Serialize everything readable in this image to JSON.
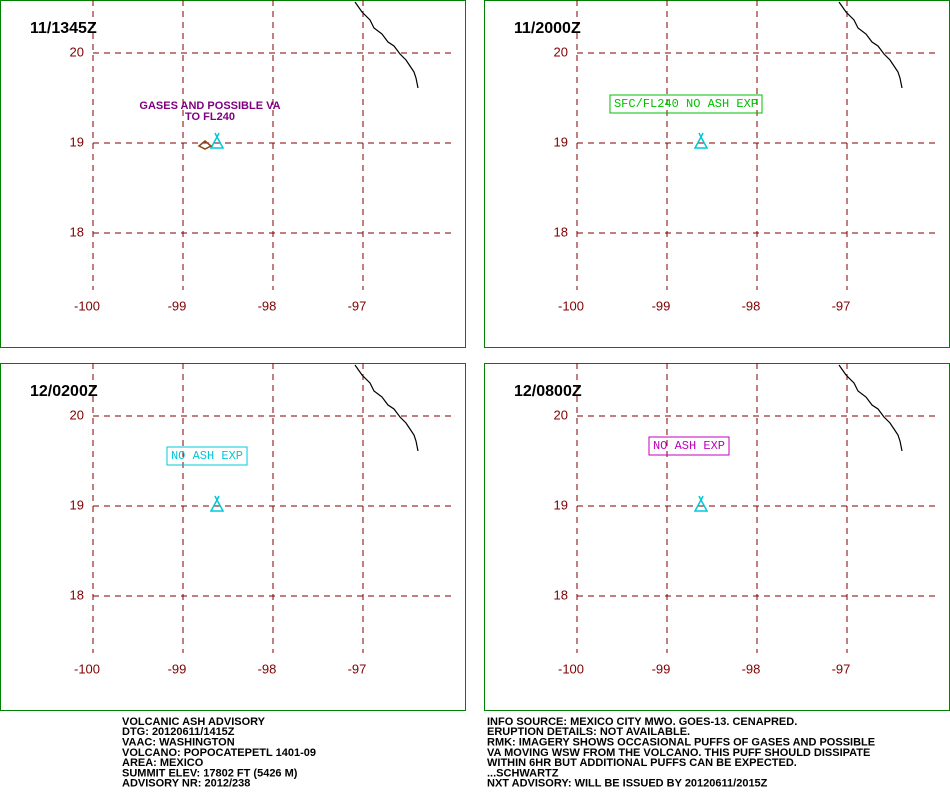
{
  "lon_labels": [
    "-100",
    "-99",
    "-98",
    "-97"
  ],
  "lat_labels": [
    "20",
    "19",
    "18"
  ],
  "panels": [
    {
      "time": "11/1345Z",
      "annotation": [
        "GASES AND POSSIBLE VA",
        "TO FL240"
      ],
      "color": "#800080"
    },
    {
      "time": "11/2000Z",
      "annotation": [
        "SFC/FL240 NO ASH EXP"
      ],
      "color": "#00c000"
    },
    {
      "time": "12/0200Z",
      "annotation": [
        "NO ASH EXP"
      ],
      "color": "#00c8d8"
    },
    {
      "time": "12/0800Z",
      "annotation": [
        "NO ASH EXP"
      ],
      "color": "#c000c0"
    }
  ],
  "advisory_left": [
    "VOLCANIC ASH ADVISORY",
    "DTG: 20120611/1415Z",
    "VAAC: WASHINGTON",
    "VOLCANO: POPOCATEPETL 1401-09",
    "AREA: MEXICO",
    "SUMMIT ELEV: 17802 FT (5426 M)",
    "ADVISORY NR: 2012/238"
  ],
  "advisory_right": [
    "INFO SOURCE: MEXICO CITY MWO. GOES-13. CENAPRED.",
    "ERUPTION DETAILS: NOT AVAILABLE.",
    "RMK: IMAGERY SHOWS OCCASIONAL PUFFS OF GASES AND POSSIBLE",
    "VA MOVING WSW FROM THE VOLCANO. THIS PUFF SHOULD DISSIPATE",
    "WITHIN 6HR BUT ADDITIONAL PUFFS CAN BE EXPECTED.",
    "...SCHWARTZ",
    "NXT ADVISORY: WILL BE ISSUED BY 20120611/2015Z"
  ]
}
